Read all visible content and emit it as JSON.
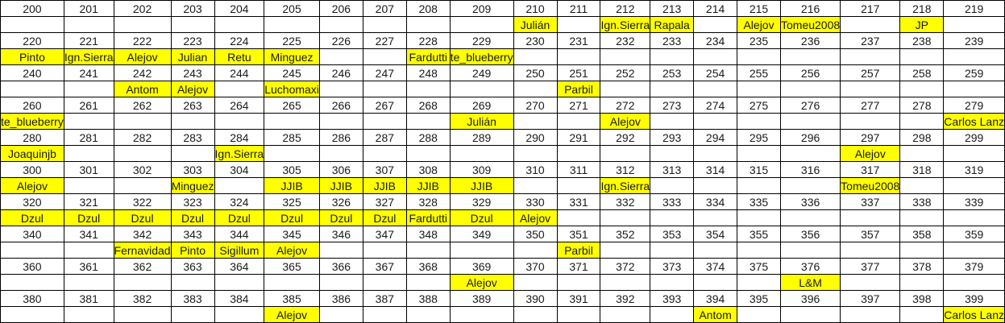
{
  "sheet": {
    "columns": 20,
    "highlight_color": "#FFFF00",
    "grid_line_color": "#000000",
    "text_color": "#1a1a1a",
    "rows": [
      {
        "type": "numbers",
        "cells": [
          "200",
          "201",
          "202",
          "203",
          "204",
          "205",
          "206",
          "207",
          "208",
          "209",
          "210",
          "211",
          "212",
          "213",
          "214",
          "215",
          "216",
          "217",
          "218",
          "219"
        ]
      },
      {
        "type": "names",
        "cells": [
          "",
          "",
          "",
          "",
          "",
          "",
          "",
          "",
          "",
          "",
          "Julián",
          "",
          "Ign.Sierra",
          "Rapala",
          "",
          "Alejov",
          "Tomeu2008",
          "",
          "JP",
          ""
        ]
      },
      {
        "type": "numbers",
        "cells": [
          "220",
          "221",
          "222",
          "223",
          "224",
          "225",
          "226",
          "227",
          "228",
          "229",
          "230",
          "231",
          "232",
          "233",
          "234",
          "235",
          "236",
          "237",
          "238",
          "239"
        ]
      },
      {
        "type": "names",
        "cells": [
          "Pinto",
          "Ign.Sierra",
          "Alejov",
          "Julian",
          "Retu",
          "Minguez",
          "",
          "",
          "Fardutti",
          "te_blueberry",
          "",
          "",
          "",
          "",
          "",
          "",
          "",
          "",
          "",
          ""
        ]
      },
      {
        "type": "numbers",
        "cells": [
          "240",
          "241",
          "242",
          "243",
          "244",
          "245",
          "246",
          "247",
          "248",
          "249",
          "250",
          "251",
          "252",
          "253",
          "254",
          "255",
          "256",
          "257",
          "258",
          "259"
        ]
      },
      {
        "type": "names",
        "cells": [
          "",
          "",
          "Antom",
          "Alejov",
          "",
          "Luchomaxi",
          "",
          "",
          "",
          "",
          "",
          "Parbil",
          "",
          "",
          "",
          "",
          "",
          "",
          "",
          ""
        ]
      },
      {
        "type": "numbers",
        "cells": [
          "260",
          "261",
          "262",
          "263",
          "264",
          "265",
          "266",
          "267",
          "268",
          "269",
          "270",
          "271",
          "272",
          "273",
          "274",
          "275",
          "276",
          "277",
          "278",
          "279"
        ]
      },
      {
        "type": "names",
        "cells": [
          "te_blueberry",
          "",
          "",
          "",
          "",
          "",
          "",
          "",
          "",
          "Julián",
          "",
          "",
          "Alejov",
          "",
          "",
          "",
          "",
          "",
          "",
          "Carlos Lanz"
        ]
      },
      {
        "type": "numbers",
        "cells": [
          "280",
          "281",
          "282",
          "283",
          "284",
          "285",
          "286",
          "287",
          "288",
          "289",
          "290",
          "291",
          "292",
          "293",
          "294",
          "295",
          "296",
          "297",
          "298",
          "299"
        ]
      },
      {
        "type": "names",
        "cells": [
          "Joaquinjb",
          "",
          "",
          "",
          "Ign.Sierra",
          "",
          "",
          "",
          "",
          "",
          "",
          "",
          "",
          "",
          "",
          "",
          "",
          "Alejov",
          "",
          ""
        ]
      },
      {
        "type": "numbers",
        "cells": [
          "300",
          "301",
          "302",
          "303",
          "304",
          "305",
          "306",
          "307",
          "308",
          "309",
          "310",
          "311",
          "312",
          "313",
          "314",
          "315",
          "316",
          "317",
          "318",
          "319"
        ]
      },
      {
        "type": "names",
        "cells": [
          "Alejov",
          "",
          "",
          "Minguez",
          "",
          "JJIB",
          "JJIB",
          "JJIB",
          "JJIB",
          "JJIB",
          "",
          "",
          "Ign.Sierra",
          "",
          "",
          "",
          "",
          "Tomeu2008",
          "",
          ""
        ]
      },
      {
        "type": "numbers",
        "cells": [
          "320",
          "321",
          "322",
          "323",
          "324",
          "325",
          "326",
          "327",
          "328",
          "329",
          "330",
          "331",
          "332",
          "333",
          "334",
          "335",
          "336",
          "337",
          "338",
          "339"
        ]
      },
      {
        "type": "names",
        "cells": [
          "Dzul",
          "Dzul",
          "Dzul",
          "Dzul",
          "Dzul",
          "Dzul",
          "Dzul",
          "Dzul",
          "Fardutti",
          "Dzul",
          "Alejov",
          "",
          "",
          "",
          "",
          "",
          "",
          "",
          "",
          ""
        ]
      },
      {
        "type": "numbers",
        "cells": [
          "340",
          "341",
          "342",
          "343",
          "344",
          "345",
          "346",
          "347",
          "348",
          "349",
          "350",
          "351",
          "352",
          "353",
          "354",
          "355",
          "356",
          "357",
          "358",
          "359"
        ]
      },
      {
        "type": "names",
        "cells": [
          "",
          "",
          "Fernavidad",
          "Pinto",
          "Sigillum",
          "Alejov",
          "",
          "",
          "",
          "",
          "",
          "Parbil",
          "",
          "",
          "",
          "",
          "",
          "",
          "",
          ""
        ]
      },
      {
        "type": "numbers",
        "cells": [
          "360",
          "361",
          "362",
          "363",
          "364",
          "365",
          "366",
          "367",
          "368",
          "369",
          "370",
          "371",
          "372",
          "373",
          "374",
          "375",
          "376",
          "377",
          "378",
          "379"
        ]
      },
      {
        "type": "names",
        "cells": [
          "",
          "",
          "",
          "",
          "",
          "",
          "",
          "",
          "",
          "Alejov",
          "",
          "",
          "",
          "",
          "",
          "",
          "L&M",
          "",
          "",
          ""
        ]
      },
      {
        "type": "numbers",
        "cells": [
          "380",
          "381",
          "382",
          "383",
          "384",
          "385",
          "386",
          "387",
          "388",
          "389",
          "390",
          "391",
          "392",
          "393",
          "394",
          "395",
          "396",
          "397",
          "398",
          "399"
        ]
      },
      {
        "type": "names",
        "cells": [
          "",
          "",
          "",
          "",
          "",
          "Alejov",
          "",
          "",
          "",
          "",
          "",
          "",
          "",
          "",
          "Antom",
          "",
          "",
          "",
          "",
          "Carlos Lanz"
        ]
      }
    ]
  }
}
